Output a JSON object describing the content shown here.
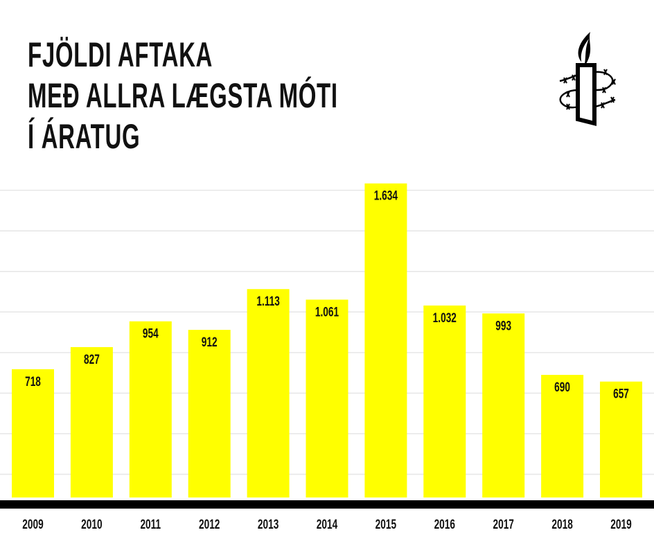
{
  "chart_data": {
    "type": "bar",
    "title_lines": [
      "FJÖLDI AFTAKA",
      "MEÐ ALLRA LÆGSTA MÓTI",
      "Í ÁRATUG"
    ],
    "categories": [
      "2009",
      "2010",
      "2011",
      "2012",
      "2013",
      "2014",
      "2015",
      "2016",
      "2017",
      "2018",
      "2019"
    ],
    "values": [
      718,
      827,
      954,
      912,
      1113,
      1061,
      1634,
      1032,
      993,
      690,
      657
    ],
    "data_labels": [
      "718",
      "827",
      "954",
      "912",
      "1.113",
      "1.061",
      "1.634",
      "1.032",
      "993",
      "690",
      "657"
    ],
    "xlabel": "",
    "ylabel": "",
    "ylim": [
      0,
      1650
    ],
    "grid": true,
    "grid_step": 200,
    "legend": "none",
    "colors": {
      "bar": "#ffff00",
      "axis": "#000000",
      "grid": "#e6e6e6",
      "text": "#111111"
    }
  },
  "logo": {
    "name": "amnesty-candle-logo"
  }
}
